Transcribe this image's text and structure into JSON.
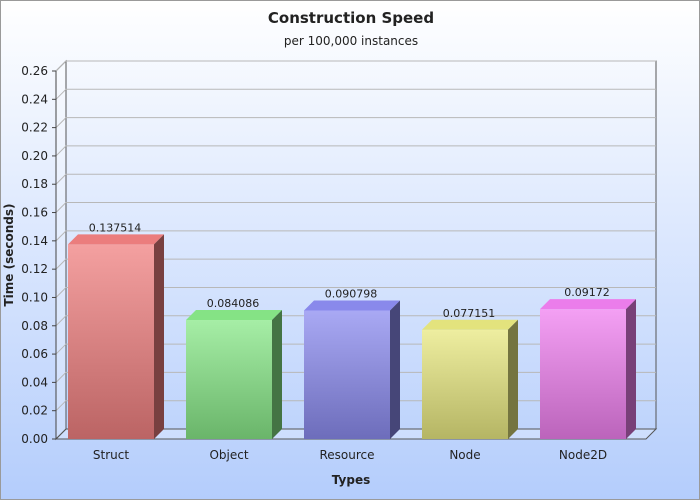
{
  "chart_data": {
    "type": "bar",
    "title": "Construction Speed",
    "subtitle": "per 100,000 instances",
    "xlabel": "Types",
    "ylabel": "Time (seconds)",
    "categories": [
      "Struct",
      "Object",
      "Resource",
      "Node",
      "Node2D"
    ],
    "values": [
      0.137514,
      0.084086,
      0.090798,
      0.077151,
      0.09172
    ],
    "value_labels": [
      "0.137514",
      "0.084086",
      "0.090798",
      "0.077151",
      "0.09172"
    ],
    "ylim": [
      0,
      0.26
    ],
    "yticks": [
      "0.00",
      "0.02",
      "0.04",
      "0.06",
      "0.08",
      "0.10",
      "0.12",
      "0.14",
      "0.16",
      "0.18",
      "0.20",
      "0.22",
      "0.24",
      "0.26"
    ],
    "grid": true,
    "legend": "none",
    "colors": [
      "#f08080",
      "#88e888",
      "#8c8cf0",
      "#e8e880",
      "#f080f0"
    ]
  }
}
